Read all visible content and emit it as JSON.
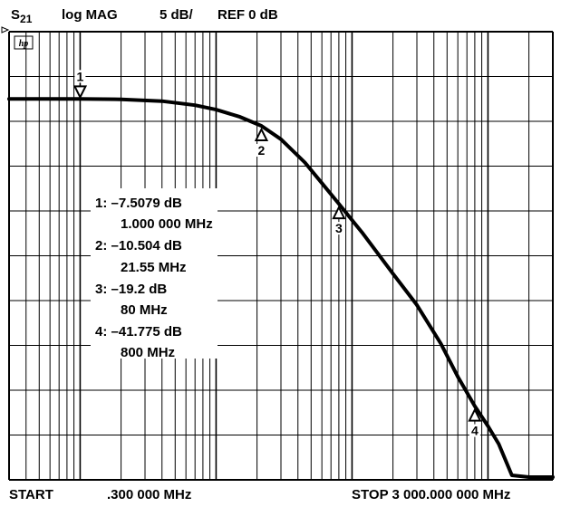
{
  "header": {
    "param_main": "S",
    "param_sub": "21",
    "format": "log MAG",
    "scale": "5 dB/",
    "reference": "REF 0 dB",
    "logo": "hp"
  },
  "footer": {
    "start_label": "START",
    "start_value": ".300 000 MHz",
    "stop_label": "STOP 3 000.000 000 MHz"
  },
  "readout": [
    "1: –7.5079 dB",
    "1.000 000 MHz",
    "2: –10.504 dB",
    "21.55 MHz",
    "3: –19.2 dB",
    "80 MHz",
    "4: –41.775 dB",
    "800 MHz"
  ],
  "chart_data": {
    "type": "line",
    "x_scale": "log",
    "xlim": [
      0.3,
      3000
    ],
    "x_unit": "MHz",
    "ylim": [
      -50,
      0
    ],
    "y_unit": "dB",
    "y_per_div": 5,
    "y_ref": 0,
    "grid": true,
    "series": [
      {
        "x": [
          0.3,
          0.5,
          1.0,
          2.0,
          4.0,
          7.0,
          10,
          15,
          21.55,
          30,
          45,
          60,
          80,
          120,
          200,
          300,
          450,
          600,
          800,
          1000,
          1200,
          1500,
          2000,
          3000
        ],
        "y": [
          -7.5,
          -7.5,
          -7.5079,
          -7.55,
          -7.75,
          -8.2,
          -8.7,
          -9.5,
          -10.504,
          -12.0,
          -14.6,
          -16.9,
          -19.2,
          -22.5,
          -27.0,
          -30.5,
          -34.8,
          -38.5,
          -41.775,
          -44.0,
          -46.0,
          -49.5,
          -49.7,
          -49.7
        ]
      }
    ],
    "markers": [
      {
        "id": "1",
        "x": 1.0,
        "y": -7.5079
      },
      {
        "id": "2",
        "x": 21.55,
        "y": -10.504
      },
      {
        "id": "3",
        "x": 80,
        "y": -19.2
      },
      {
        "id": "4",
        "x": 800,
        "y": -41.775
      }
    ]
  }
}
